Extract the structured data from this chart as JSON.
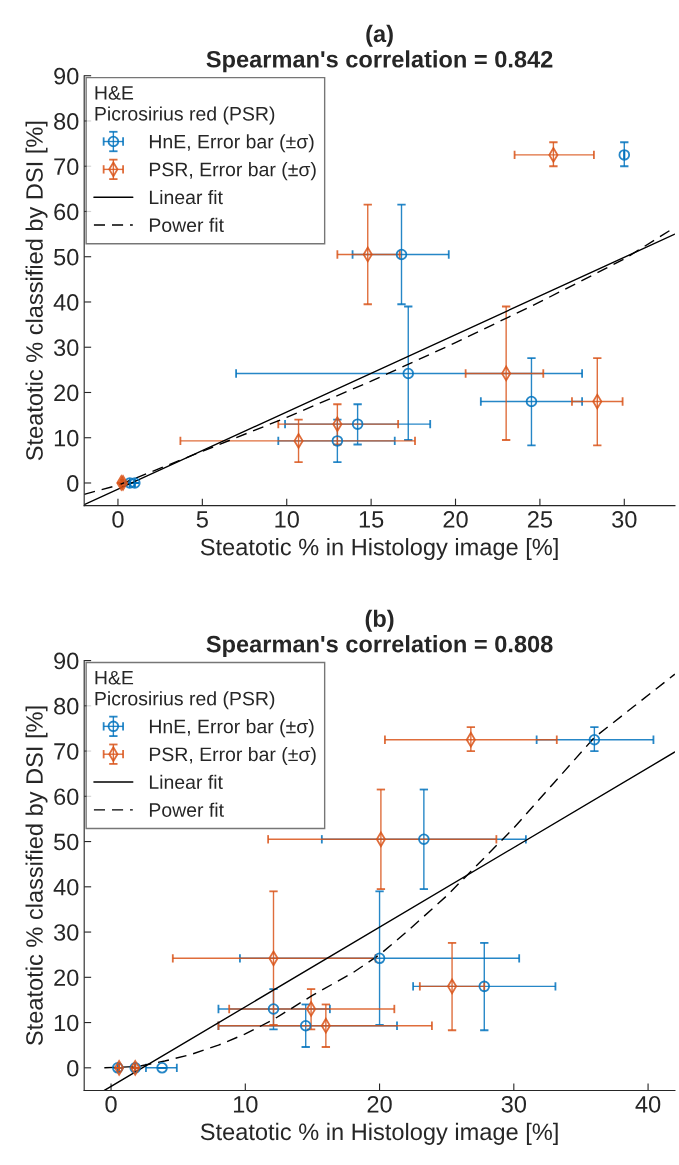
{
  "chart_data": [
    {
      "type": "scatter",
      "title": "(a)",
      "subtitle": "Spearman's correlation = 0.842",
      "xlabel": "Steatotic % in Histology image [%]",
      "ylabel": "Steatotic % classified by DSI [%]",
      "legend_title": "H&E\nPicrosirius red (PSR)",
      "legend": "top left",
      "grid": false,
      "xlim": [
        -2,
        33
      ],
      "xticks": [
        0,
        5,
        10,
        15,
        20,
        25,
        30
      ],
      "ylim": [
        -5,
        90
      ],
      "yticks": [
        0,
        10,
        20,
        30,
        40,
        50,
        60,
        70,
        80,
        90
      ],
      "series": [
        {
          "name": "HnE, Error bar (±σ)",
          "color": "#0072bd",
          "marker": "circle",
          "x": [
            30.0,
            16.8,
            17.2,
            24.5,
            14.2,
            13.0,
            1.0,
            0.7
          ],
          "values": [
            72.5,
            50.5,
            24.2,
            18.0,
            13.0,
            9.3,
            0,
            0
          ],
          "xerrors": [
            null,
            [
              13.9,
              19.6
            ],
            [
              7.0,
              27.5
            ],
            [
              21.5,
              27.5
            ],
            [
              9.9,
              18.5
            ],
            [
              9.5,
              16.4
            ],
            null,
            null
          ],
          "errors": [
            [
              70,
              75.3
            ],
            [
              39.5,
              61.5
            ],
            [
              9.5,
              39.0
            ],
            [
              8.3,
              27.6
            ],
            [
              8.5,
              17.4
            ],
            [
              4.6,
              14.0
            ],
            null,
            null
          ]
        },
        {
          "name": "PSR, Error bar (±σ)",
          "color": "#d95319",
          "marker": "diamond",
          "x": [
            25.8,
            14.8,
            23.0,
            28.4,
            13.0,
            10.7,
            0.3,
            0.2
          ],
          "values": [
            72.5,
            50.5,
            24.2,
            18.0,
            13.0,
            9.3,
            0,
            0
          ],
          "xerrors": [
            [
              23.5,
              28.2
            ],
            [
              13.0,
              16.7
            ],
            [
              20.6,
              25.2
            ],
            [
              26.9,
              29.9
            ],
            [
              9.5,
              16.6
            ],
            [
              3.7,
              17.6
            ],
            null,
            null
          ],
          "errors": [
            [
              70,
              75.3
            ],
            [
              39.5,
              61.5
            ],
            [
              9.5,
              39.0
            ],
            [
              8.3,
              27.6
            ],
            [
              8.5,
              17.4
            ],
            [
              4.6,
              14.0
            ],
            null,
            null
          ]
        },
        {
          "name": "Linear fit",
          "type": "line",
          "color": "#000000",
          "line_style": "solid",
          "x": [
            -2,
            33
          ],
          "values": [
            -4.8,
            55
          ]
        },
        {
          "name": "Power fit",
          "type": "line",
          "color": "#000000",
          "line_style": "dashed",
          "x": [
            -2,
            0,
            5,
            10,
            15,
            20,
            25,
            30,
            33
          ],
          "values": [
            -2.5,
            -0.5,
            7,
            14.5,
            22.5,
            31,
            40,
            49.5,
            56.5
          ]
        }
      ]
    },
    {
      "type": "scatter",
      "title": "(b)",
      "subtitle": "Spearman's correlation = 0.808",
      "xlabel": "Steatotic % in Histology image [%]",
      "ylabel": "Steatotic % classified by DSI [%]",
      "legend_title": "H&E\nPicrosirius red (PSR)",
      "legend": "top left",
      "grid": false,
      "xlim": [
        -2,
        42
      ],
      "xticks": [
        0,
        10,
        20,
        30,
        40
      ],
      "ylim": [
        -5,
        90
      ],
      "yticks": [
        0,
        10,
        20,
        30,
        40,
        50,
        60,
        70,
        80,
        90
      ],
      "series": [
        {
          "name": "HnE, Error bar (±σ)",
          "color": "#0072bd",
          "marker": "circle",
          "x": [
            36.0,
            23.3,
            20.0,
            27.8,
            12.1,
            14.5,
            3.8,
            1.8,
            0.5
          ],
          "values": [
            72.5,
            50.5,
            24.2,
            18.0,
            13.0,
            9.3,
            0,
            0,
            0
          ],
          "xerrors": [
            [
              31.7,
              40.4
            ],
            [
              15.7,
              30.9
            ],
            [
              9.6,
              30.4
            ],
            [
              22.5,
              33.1
            ],
            [
              8.0,
              16.3
            ],
            [
              8.0,
              21.3
            ],
            [
              2.6,
              4.9
            ],
            null,
            null
          ],
          "errors": [
            [
              70,
              75.3
            ],
            [
              39.5,
              61.5
            ],
            [
              9.5,
              39.0
            ],
            [
              8.3,
              27.6
            ],
            [
              8.5,
              17.4
            ],
            [
              4.6,
              14.0
            ],
            null,
            null,
            null
          ]
        },
        {
          "name": "PSR, Error bar (±σ)",
          "color": "#d95319",
          "marker": "diamond",
          "x": [
            26.8,
            20.1,
            12.1,
            25.4,
            14.9,
            16.0,
            1.8,
            0.6
          ],
          "values": [
            72.5,
            50.5,
            24.2,
            18.0,
            13.0,
            9.3,
            0,
            0
          ],
          "xerrors": [
            [
              20.4,
              33.2
            ],
            [
              11.7,
              28.7
            ],
            [
              4.6,
              19.7
            ],
            [
              23.0,
              27.8
            ],
            [
              8.8,
              21.1
            ],
            [
              8.0,
              23.9
            ],
            null,
            null
          ],
          "errors": [
            [
              70,
              75.3
            ],
            [
              39.5,
              61.5
            ],
            [
              9.5,
              39.0
            ],
            [
              8.3,
              27.6
            ],
            [
              8.5,
              17.4
            ],
            [
              4.6,
              14.0
            ],
            null,
            null
          ]
        },
        {
          "name": "Linear fit",
          "type": "line",
          "color": "#000000",
          "line_style": "solid",
          "x": [
            -0.5,
            42
          ],
          "values": [
            -5,
            69.8
          ]
        },
        {
          "name": "Power fit",
          "type": "line",
          "color": "#000000",
          "line_style": "dashed",
          "x": [
            -0.5,
            2,
            4,
            6,
            8,
            10,
            12,
            15,
            18,
            20,
            22,
            25,
            28,
            30,
            33,
            36,
            39,
            42
          ],
          "values": [
            0,
            0.3,
            1.5,
            3,
            5,
            7.5,
            10.5,
            16,
            21,
            25,
            30,
            38,
            47,
            53,
            63,
            73,
            80,
            87
          ]
        }
      ]
    }
  ]
}
